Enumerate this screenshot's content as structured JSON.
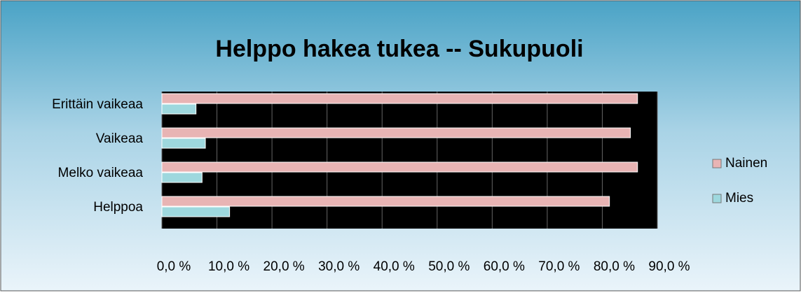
{
  "chart_data": {
    "type": "hbar",
    "title": "Helppo hakea tukea -- Sukupuoli",
    "categories": [
      "Erittäin vaikeaa",
      "Vaikeaa",
      "Melko vaikeaa",
      "Helppoa"
    ],
    "series": [
      {
        "name": "Nainen",
        "color": "#e8b4b4",
        "values": [
          86.4,
          85.1,
          86.4,
          81.3
        ]
      },
      {
        "name": "Mies",
        "color": "#9ed8de",
        "values": [
          6.2,
          7.9,
          7.3,
          12.3
        ]
      }
    ],
    "xlim": [
      0,
      90
    ],
    "xticks": [
      {
        "value": 0,
        "label": "0,0 %"
      },
      {
        "value": 10,
        "label": "10,0 %"
      },
      {
        "value": 20,
        "label": "20,0 %"
      },
      {
        "value": 30,
        "label": "30,0 %"
      },
      {
        "value": 40,
        "label": "40,0 %"
      },
      {
        "value": 50,
        "label": "50,0 %"
      },
      {
        "value": 60,
        "label": "60,0 %"
      },
      {
        "value": 70,
        "label": "70,0 %"
      },
      {
        "value": 80,
        "label": "80,0 %"
      },
      {
        "value": 90,
        "label": "90,0 %"
      }
    ],
    "grid": true,
    "legend": "right"
  }
}
